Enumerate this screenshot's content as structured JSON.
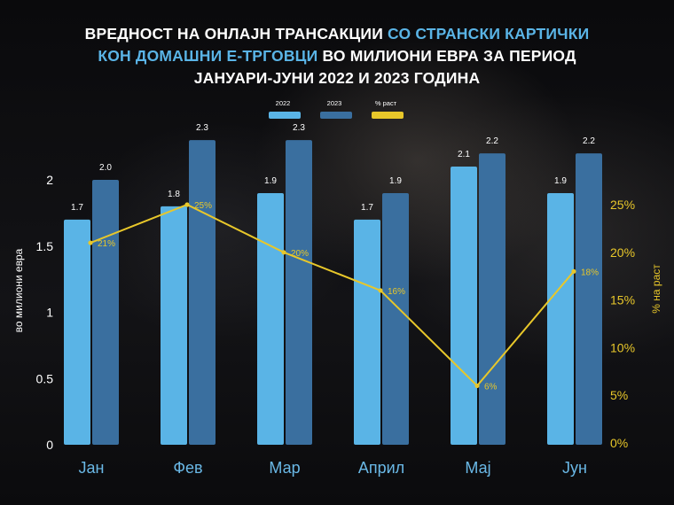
{
  "title": {
    "line1_a": "ВРЕДНОСТ НА ОНЛАЈН ТРАНСАКЦИИ ",
    "line1_b": "СО СТРАНСКИ КАРТИЧКИ",
    "line2_a": "КОН ДОМАШНИ Е-ТРГОВЦИ",
    "line2_b": " ВО МИЛИОНИ ЕВРА ЗА ПЕРИОД",
    "line3": "ЈАНУАРИ-ЈУНИ 2022 И 2023 ГОДИНА"
  },
  "colors": {
    "s2022": "#5ab4e6",
    "s2023": "#3a6f9f",
    "growth": "#e8c72a",
    "text": "#ffffff"
  },
  "chart_data": {
    "type": "bar",
    "categories": [
      "Јан",
      "Фев",
      "Мар",
      "Април",
      "Мај",
      "Јун"
    ],
    "series": [
      {
        "name": "2022",
        "values": [
          1.7,
          1.8,
          1.9,
          1.7,
          2.1,
          1.9
        ],
        "labels": [
          "1.7",
          "1.8",
          "1.9",
          "1.7",
          "2.1",
          "1.9"
        ]
      },
      {
        "name": "2023",
        "values": [
          2.0,
          2.3,
          2.3,
          1.9,
          2.2,
          2.2
        ],
        "labels": [
          "2.0",
          "2.3",
          "2.3",
          "1.9",
          "2.2",
          "2.2"
        ]
      }
    ],
    "line_series": {
      "name": "% раст",
      "values": [
        21,
        25,
        20,
        16,
        6,
        18
      ],
      "labels": [
        "21%",
        "25%",
        "20%",
        "16%",
        "6%",
        "18%"
      ]
    },
    "ylabel": "во милиони евра",
    "y2label": "% на раст",
    "ylim": [
      0,
      2
    ],
    "y_ticks": [
      "0",
      "0.5",
      "1",
      "1.5",
      "2"
    ],
    "y2lim": [
      0,
      25
    ],
    "y2_ticks": [
      "0%",
      "5%",
      "10%",
      "15%",
      "20%",
      "25%"
    ],
    "legend_position": "top-center",
    "grid": false
  }
}
